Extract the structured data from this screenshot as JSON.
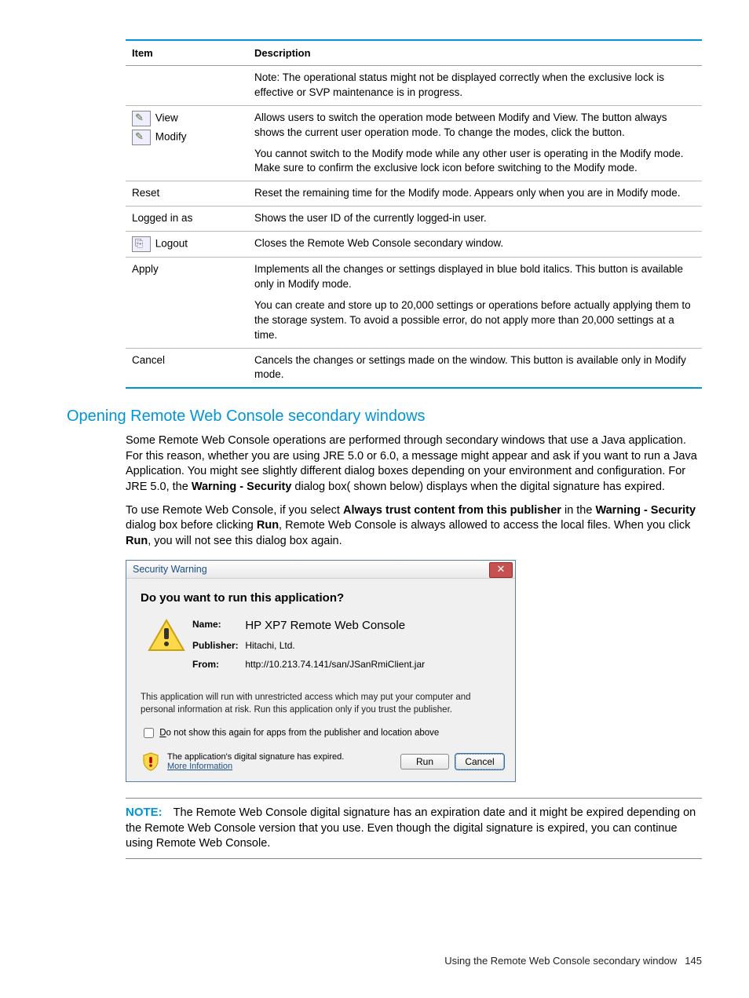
{
  "table": {
    "headers": {
      "item": "Item",
      "description": "Description"
    },
    "rows": [
      {
        "item_lines": [],
        "desc_paras": [
          "Note: The operational status might not be displayed correctly when the exclusive lock is effective or SVP maintenance is in progress."
        ]
      },
      {
        "item_lines": [
          {
            "icon": "pencil",
            "text": "View"
          },
          {
            "icon": "pencil",
            "text": "Modify"
          }
        ],
        "desc_paras": [
          "Allows users to switch the operation mode between Modify and View. The button always shows the current user operation mode. To change the modes, click the button.",
          "You cannot switch to the Modify mode while any other user is operating in the Modify mode. Make sure to confirm the exclusive lock icon before switching to the Modify mode."
        ]
      },
      {
        "item_lines": [
          {
            "text": "Reset"
          }
        ],
        "desc_paras": [
          "Reset the remaining time for the Modify mode. Appears only when you are in Modify mode."
        ]
      },
      {
        "item_lines": [
          {
            "text": "Logged in as"
          }
        ],
        "desc_paras": [
          "Shows the user ID of the currently logged-in user."
        ]
      },
      {
        "item_lines": [
          {
            "icon": "door",
            "text": "Logout"
          }
        ],
        "desc_paras": [
          "Closes the Remote Web Console secondary window."
        ]
      },
      {
        "item_lines": [
          {
            "text": "Apply"
          }
        ],
        "desc_paras": [
          "Implements all the changes or settings displayed in blue bold italics. This button is available only in Modify mode.",
          "You can create and store up to 20,000 settings or operations before actually applying them to the storage system. To avoid a possible error, do not apply more than 20,000 settings at a time."
        ]
      },
      {
        "item_lines": [
          {
            "text": "Cancel"
          }
        ],
        "desc_paras": [
          "Cancels the changes or settings made on the window. This button is available only in Modify mode."
        ]
      }
    ]
  },
  "section_heading": "Opening Remote Web Console secondary windows",
  "body": {
    "p1_before_bold": "Some Remote Web Console operations are performed through secondary windows that use a Java application. For this reason, whether you are using JRE 5.0 or 6.0, a message might appear and ask if you want to run a Java Application. You might see slightly different dialog boxes depending on your environment and configuration. For JRE 5.0, the ",
    "p1_bold": "Warning - Security",
    "p1_after_bold": " dialog box( shown below) displays when the digital signature has expired.",
    "p2_a": "To use Remote Web Console, if you select ",
    "p2_b": "Always trust content from this publisher",
    "p2_c": " in the  ",
    "p2_d": "Warning - Security",
    "p2_e": " dialog box before clicking ",
    "p2_f": "Run",
    "p2_g": ", Remote Web Console is always allowed to access the local files. When you click ",
    "p2_h": "Run",
    "p2_i": ", you will not see this dialog box again."
  },
  "dialog": {
    "title": "Security Warning",
    "heading": "Do you want to run this application?",
    "name_label": "Name:",
    "name_value": "HP XP7 Remote Web Console",
    "publisher_label": "Publisher:",
    "publisher_value": "Hitachi, Ltd.",
    "from_label": "From:",
    "from_value": "http://10.213.74.141/san/JSanRmiClient.jar",
    "warning_msg": "This application will run with unrestricted access which may put your computer and personal information at risk. Run this application only if you trust the publisher.",
    "checkbox_prefix": "D",
    "checkbox_rest": "o not show this again for apps from the publisher and location above",
    "expired_msg": "The application's digital signature has expired.",
    "more_info_prefix": "M",
    "more_info_rest": "ore Information",
    "run_btn": "Run",
    "cancel_btn": "Cancel"
  },
  "note": {
    "label": "NOTE:",
    "text": "The Remote Web Console digital signature has an expiration date and it might be expired depending on the Remote Web Console version that you use. Even though the digital signature is expired, you can continue using Remote Web Console."
  },
  "footer": {
    "text": "Using the Remote Web Console secondary window",
    "page": "145"
  }
}
